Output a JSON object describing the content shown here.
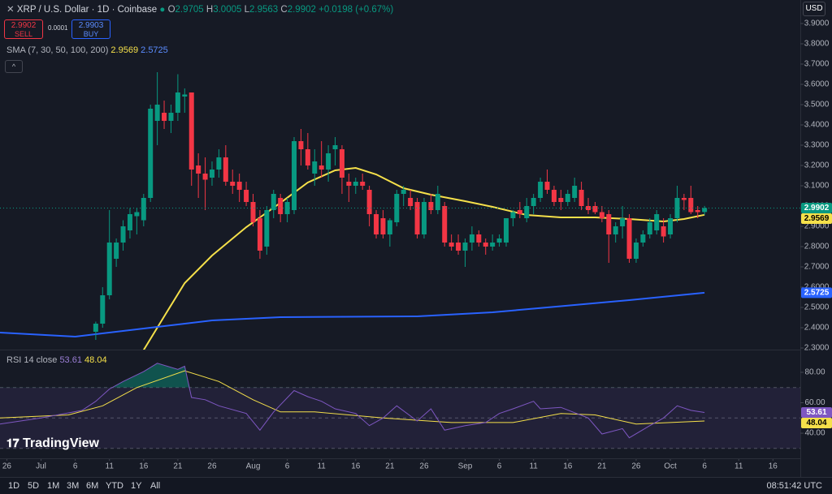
{
  "header": {
    "symbol": "XRP / U.S. Dollar · 1D · Coinbase",
    "o": "O",
    "h": "H",
    "l": "L",
    "c": "C",
    "change": "+0.0198 (+0.67%)",
    "sell": "SELL",
    "buy": "BUY",
    "buy_price": "2.9903",
    "spread": "0.0001",
    "currency": "USD",
    "logo": "TradingView"
  },
  "chart_data": {
    "type": "candlestick",
    "up_color": "#089981",
    "down_color": "#f23645",
    "grid": false,
    "xlim": [
      "06-25",
      "10-20"
    ],
    "xticks": [
      {
        "value": "06-26",
        "label": "26"
      },
      {
        "value": "07-01",
        "label": "Jul"
      },
      {
        "value": "07-06",
        "label": "6"
      },
      {
        "value": "07-11",
        "label": "11"
      },
      {
        "value": "07-16",
        "label": "16"
      },
      {
        "value": "07-21",
        "label": "21"
      },
      {
        "value": "07-26",
        "label": "26"
      },
      {
        "value": "08-01",
        "label": "Aug"
      },
      {
        "value": "08-06",
        "label": "6"
      },
      {
        "value": "08-11",
        "label": "11"
      },
      {
        "value": "08-16",
        "label": "16"
      },
      {
        "value": "08-21",
        "label": "21"
      },
      {
        "value": "08-26",
        "label": "26"
      },
      {
        "value": "09-01",
        "label": "Sep"
      },
      {
        "value": "09-06",
        "label": "6"
      },
      {
        "value": "09-11",
        "label": "11"
      },
      {
        "value": "09-16",
        "label": "16"
      },
      {
        "value": "09-21",
        "label": "21"
      },
      {
        "value": "09-26",
        "label": "26"
      },
      {
        "value": "10-01",
        "label": "Oct"
      },
      {
        "value": "10-06",
        "label": "6"
      },
      {
        "value": "10-11",
        "label": "11"
      },
      {
        "value": "10-16",
        "label": "16"
      }
    ],
    "ylim": [
      2.292,
      4.016
    ],
    "yticks": [
      {
        "value": 3.9,
        "label": "3.9000"
      },
      {
        "value": 3.8,
        "label": "3.8000"
      },
      {
        "value": 3.7,
        "label": "3.7000"
      },
      {
        "value": 3.6,
        "label": "3.6000"
      },
      {
        "value": 3.5,
        "label": "3.5000"
      },
      {
        "value": 3.4,
        "label": "3.4000"
      },
      {
        "value": 3.3,
        "label": "3.3000"
      },
      {
        "value": 3.2,
        "label": "3.2000"
      },
      {
        "value": 3.1,
        "label": "3.1000"
      },
      {
        "value": 3.0,
        "label": "3.0000"
      },
      {
        "value": 2.9,
        "label": "2.9000"
      },
      {
        "value": 2.8,
        "label": "2.8000"
      },
      {
        "value": 2.7,
        "label": "2.7000"
      },
      {
        "value": 2.6,
        "label": "2.6000"
      },
      {
        "value": 2.5,
        "label": "2.5000"
      },
      {
        "value": 2.4,
        "label": "2.4000"
      },
      {
        "value": 2.3,
        "label": "2.3000"
      }
    ],
    "x": [
      "07-09",
      "07-10",
      "07-11",
      "07-12",
      "07-13",
      "07-14",
      "07-15",
      "07-16",
      "07-17",
      "07-18",
      "07-19",
      "07-20",
      "07-21",
      "07-22",
      "07-23",
      "07-24",
      "07-25",
      "07-26",
      "07-27",
      "07-28",
      "07-29",
      "07-30",
      "07-31",
      "08-01",
      "08-02",
      "08-03",
      "08-04",
      "08-05",
      "08-06",
      "08-07",
      "08-08",
      "08-09",
      "08-10",
      "08-11",
      "08-12",
      "08-13",
      "08-14",
      "08-15",
      "08-16",
      "08-17",
      "08-18",
      "08-19",
      "08-20",
      "08-21",
      "08-22",
      "08-23",
      "08-24",
      "08-25",
      "08-26",
      "08-27",
      "08-28",
      "08-29",
      "08-30",
      "08-31",
      "09-01",
      "09-02",
      "09-03",
      "09-04",
      "09-05",
      "09-06",
      "09-07",
      "09-08",
      "09-09",
      "09-10",
      "09-11",
      "09-12",
      "09-13",
      "09-14",
      "09-15",
      "09-16",
      "09-17",
      "09-18",
      "09-19",
      "09-20",
      "09-21",
      "09-22",
      "09-23",
      "09-24",
      "09-25",
      "09-26",
      "09-27",
      "09-28",
      "09-29",
      "09-30",
      "10-01",
      "10-02",
      "10-03",
      "10-04",
      "10-05",
      "10-06"
    ],
    "ohlc": [
      [
        2.38,
        2.43,
        2.34,
        2.42
      ],
      [
        2.42,
        2.6,
        2.4,
        2.56
      ],
      [
        2.56,
        2.98,
        2.54,
        2.82
      ],
      [
        2.74,
        2.84,
        2.7,
        2.82
      ],
      [
        2.82,
        2.93,
        2.78,
        2.9
      ],
      [
        2.88,
        2.99,
        2.84,
        2.96
      ],
      [
        2.95,
        2.99,
        2.86,
        2.97
      ],
      [
        2.93,
        3.06,
        2.9,
        3.04
      ],
      [
        3.04,
        3.5,
        3.02,
        3.48
      ],
      [
        3.42,
        3.66,
        3.3,
        3.5
      ],
      [
        3.46,
        3.52,
        3.38,
        3.42
      ],
      [
        3.42,
        3.5,
        3.36,
        3.46
      ],
      [
        3.46,
        3.65,
        3.42,
        3.56
      ],
      [
        3.54,
        3.58,
        3.46,
        3.55
      ],
      [
        3.56,
        3.56,
        3.1,
        3.18
      ],
      [
        3.2,
        3.26,
        3.04,
        3.16
      ],
      [
        3.16,
        3.24,
        2.98,
        3.13
      ],
      [
        3.14,
        3.22,
        3.1,
        3.18
      ],
      [
        3.18,
        3.28,
        3.14,
        3.24
      ],
      [
        3.24,
        3.3,
        3.1,
        3.12
      ],
      [
        3.12,
        3.18,
        3.06,
        3.1
      ],
      [
        3.12,
        3.16,
        3.02,
        3.08
      ],
      [
        3.08,
        3.12,
        3.0,
        3.02
      ],
      [
        3.02,
        3.06,
        2.9,
        2.92
      ],
      [
        2.94,
        2.98,
        2.74,
        2.78
      ],
      [
        2.8,
        3.0,
        2.76,
        2.98
      ],
      [
        2.98,
        3.08,
        2.94,
        3.06
      ],
      [
        3.04,
        3.06,
        2.92,
        2.96
      ],
      [
        2.96,
        3.04,
        2.92,
        3.02
      ],
      [
        2.98,
        3.34,
        2.96,
        3.32
      ],
      [
        3.32,
        3.38,
        3.2,
        3.28
      ],
      [
        3.28,
        3.36,
        3.18,
        3.2
      ],
      [
        3.16,
        3.28,
        3.1,
        3.22
      ],
      [
        3.2,
        3.32,
        3.14,
        3.18
      ],
      [
        3.18,
        3.3,
        3.12,
        3.26
      ],
      [
        3.28,
        3.34,
        3.2,
        3.3
      ],
      [
        3.28,
        3.3,
        3.06,
        3.14
      ],
      [
        3.12,
        3.16,
        3.02,
        3.1
      ],
      [
        3.1,
        3.14,
        3.06,
        3.12
      ],
      [
        3.12,
        3.16,
        3.08,
        3.1
      ],
      [
        3.08,
        3.1,
        2.9,
        2.96
      ],
      [
        2.96,
        2.98,
        2.84,
        2.86
      ],
      [
        2.94,
        2.98,
        2.84,
        2.86
      ],
      [
        2.86,
        2.94,
        2.8,
        2.93
      ],
      [
        2.92,
        3.08,
        2.9,
        3.06
      ],
      [
        3.06,
        3.1,
        3.0,
        3.08
      ],
      [
        3.04,
        3.08,
        2.98,
        3.0
      ],
      [
        3.02,
        3.04,
        2.84,
        2.86
      ],
      [
        2.86,
        3.04,
        2.84,
        3.02
      ],
      [
        3.02,
        3.06,
        2.96,
        2.98
      ],
      [
        2.98,
        3.1,
        2.96,
        3.06
      ],
      [
        3.0,
        3.02,
        2.8,
        2.82
      ],
      [
        2.82,
        2.86,
        2.78,
        2.8
      ],
      [
        2.82,
        2.86,
        2.76,
        2.78
      ],
      [
        2.78,
        2.84,
        2.7,
        2.82
      ],
      [
        2.82,
        2.9,
        2.78,
        2.86
      ],
      [
        2.86,
        2.88,
        2.8,
        2.82
      ],
      [
        2.82,
        2.84,
        2.76,
        2.8
      ],
      [
        2.8,
        2.86,
        2.78,
        2.82
      ],
      [
        2.82,
        2.86,
        2.8,
        2.84
      ],
      [
        2.82,
        2.94,
        2.8,
        2.94
      ],
      [
        2.94,
        2.98,
        2.9,
        2.97
      ],
      [
        2.98,
        3.02,
        2.94,
        2.96
      ],
      [
        2.94,
        3.04,
        2.92,
        3.0
      ],
      [
        3.0,
        3.06,
        2.96,
        3.04
      ],
      [
        3.04,
        3.14,
        3.02,
        3.12
      ],
      [
        3.12,
        3.18,
        3.06,
        3.08
      ],
      [
        3.08,
        3.1,
        3.0,
        3.02
      ],
      [
        3.04,
        3.08,
        2.98,
        3.02
      ],
      [
        3.02,
        3.08,
        3.0,
        3.06
      ],
      [
        3.04,
        3.14,
        3.02,
        3.1
      ],
      [
        3.08,
        3.12,
        2.98,
        3.0
      ],
      [
        3.0,
        3.04,
        2.96,
        2.98
      ],
      [
        3.0,
        3.02,
        2.96,
        2.97
      ],
      [
        2.97,
        3.0,
        2.92,
        2.94
      ],
      [
        2.96,
        2.98,
        2.72,
        2.86
      ],
      [
        2.86,
        2.92,
        2.82,
        2.9
      ],
      [
        2.9,
        3.0,
        2.84,
        2.94
      ],
      [
        2.94,
        2.96,
        2.72,
        2.74
      ],
      [
        2.74,
        2.84,
        2.72,
        2.82
      ],
      [
        2.82,
        2.88,
        2.8,
        2.86
      ],
      [
        2.86,
        2.94,
        2.84,
        2.92
      ],
      [
        2.88,
        2.98,
        2.86,
        2.96
      ],
      [
        2.9,
        2.94,
        2.82,
        2.85
      ],
      [
        2.86,
        2.96,
        2.84,
        2.94
      ],
      [
        2.94,
        3.1,
        2.92,
        3.04
      ],
      [
        3.04,
        3.06,
        2.98,
        3.03
      ],
      [
        3.04,
        3.1,
        2.96,
        2.97
      ],
      [
        2.98,
        3.0,
        2.94,
        2.97
      ],
      [
        2.9705,
        3.0005,
        2.9563,
        2.9902
      ]
    ],
    "sma_label": "SMA (7, 30, 50, 100, 200)",
    "sma": [
      {
        "color": "#f5e04a",
        "x": [
          "07-16",
          "07-19",
          "07-22",
          "07-26",
          "07-31",
          "08-05",
          "08-09",
          "08-13",
          "08-16",
          "08-19",
          "08-23",
          "08-27",
          "09-01",
          "09-05",
          "09-10",
          "09-15",
          "09-20",
          "09-25",
          "09-30",
          "10-03",
          "10-06"
        ],
        "values": [
          2.29,
          2.456,
          2.62,
          2.756,
          2.896,
          3.016,
          3.116,
          3.176,
          3.188,
          3.156,
          3.088,
          3.056,
          3.024,
          2.996,
          2.956,
          2.944,
          2.944,
          2.936,
          2.924,
          2.936,
          2.9569
        ]
      },
      {
        "color": "#2962ff",
        "x": [
          "06-25",
          "07-06",
          "07-16",
          "07-26",
          "08-05",
          "08-25",
          "09-05",
          "09-15",
          "09-25",
          "10-06"
        ],
        "values": [
          2.376,
          2.356,
          2.396,
          2.436,
          2.452,
          2.456,
          2.476,
          2.506,
          2.536,
          2.5725
        ]
      }
    ],
    "rsi": {
      "name": "RSI 14 close",
      "color": "#7e57c2",
      "ylim": [
        23.5,
        94.4
      ],
      "yticks": [
        {
          "value": 80,
          "label": "80.00"
        },
        {
          "value": 60,
          "label": "60.00"
        },
        {
          "value": 40,
          "label": "40.00"
        }
      ],
      "bands": [
        30,
        50,
        70
      ],
      "x": [
        "06-25",
        "07-01",
        "07-07",
        "07-09",
        "07-11",
        "07-13",
        "07-16",
        "07-18",
        "07-21",
        "07-22",
        "07-23",
        "07-25",
        "07-27",
        "07-31",
        "08-02",
        "08-04",
        "08-07",
        "08-09",
        "08-11",
        "08-13",
        "08-16",
        "08-18",
        "08-20",
        "08-22",
        "08-25",
        "08-27",
        "08-29",
        "09-01",
        "09-04",
        "09-06",
        "09-08",
        "09-11",
        "09-12",
        "09-15",
        "09-19",
        "09-21",
        "09-24",
        "09-25",
        "09-28",
        "09-30",
        "10-02",
        "10-04",
        "10-06"
      ],
      "values": [
        46,
        50,
        55,
        61,
        69,
        74,
        80.5,
        86,
        82,
        84,
        63.5,
        62,
        58,
        53,
        42,
        54,
        68,
        64,
        61,
        56,
        53,
        45,
        50,
        58,
        48,
        56,
        42,
        45,
        47,
        53,
        56,
        61,
        56,
        57,
        50,
        39.5,
        43,
        37,
        45,
        50,
        58,
        55,
        53.61
      ],
      "ma": {
        "color": "#f5e04a",
        "x": [
          "06-25",
          "07-05",
          "07-10",
          "07-15",
          "07-22",
          "07-27",
          "08-01",
          "08-05",
          "08-10",
          "08-20",
          "08-30",
          "09-08",
          "09-15",
          "09-20",
          "09-26",
          "10-01",
          "10-06"
        ],
        "values": [
          50,
          52,
          58,
          70,
          81,
          74,
          62,
          54,
          54,
          50,
          47,
          47,
          53,
          52,
          46,
          47,
          48.04
        ]
      }
    }
  },
  "toolbar": {
    "ranges": [
      "1D",
      "5D",
      "1M",
      "3M",
      "6M",
      "YTD",
      "1Y",
      "All"
    ],
    "time": "08:51:42 UTC"
  }
}
